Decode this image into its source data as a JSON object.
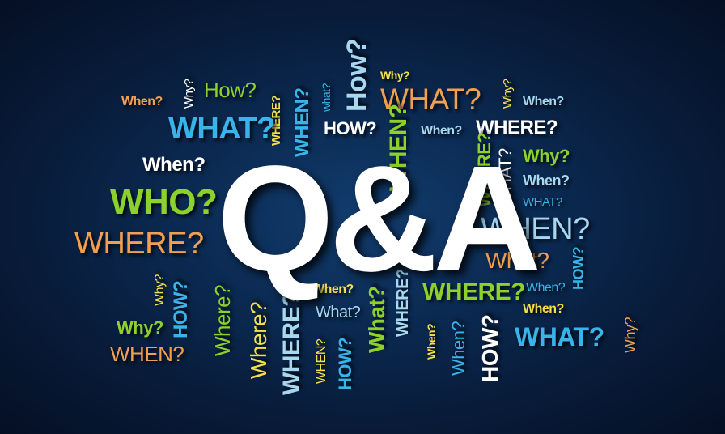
{
  "headline": "Q&A",
  "colors": {
    "background": "#0b2a52",
    "white": "#ffffff",
    "orange": "#f0a050",
    "green": "#8cd12c",
    "yellow": "#f5e04a",
    "light_blue": "#a8d8f0",
    "sky_blue": "#38b4e8"
  },
  "words": [
    {
      "text": "When?"
    },
    {
      "text": "Why?"
    },
    {
      "text": "How?"
    },
    {
      "text": "WHERE?"
    },
    {
      "text": "WHEN?"
    },
    {
      "text": "what?"
    },
    {
      "text": "How?"
    },
    {
      "text": "Why?"
    },
    {
      "text": "WHAT?"
    },
    {
      "text": "Why?"
    },
    {
      "text": "When?"
    },
    {
      "text": "WHAT?"
    },
    {
      "text": "HOW?"
    },
    {
      "text": "WHEN?"
    },
    {
      "text": "When?"
    },
    {
      "text": "WHERE?"
    },
    {
      "text": "WHERE?"
    },
    {
      "text": "WHAT?"
    },
    {
      "text": "Why?"
    },
    {
      "text": "When?"
    },
    {
      "text": "When?"
    },
    {
      "text": "WHAT?"
    },
    {
      "text": "WHO?"
    },
    {
      "text": "WHERE?"
    },
    {
      "text": "WHEN?"
    },
    {
      "text": "What?"
    },
    {
      "text": "HOW?"
    },
    {
      "text": "When?"
    },
    {
      "text": "Why?"
    },
    {
      "text": "HOW?"
    },
    {
      "text": "Where?"
    },
    {
      "text": "Where?"
    },
    {
      "text": "WHERE?"
    },
    {
      "text": "When?"
    },
    {
      "text": "What?"
    },
    {
      "text": "WHEN?"
    },
    {
      "text": "HOW?"
    },
    {
      "text": "What?"
    },
    {
      "text": "WHERE?"
    },
    {
      "text": "WHERE?"
    },
    {
      "text": "When?"
    },
    {
      "text": "When?"
    },
    {
      "text": "When?"
    },
    {
      "text": "HOW?"
    },
    {
      "text": "Why?"
    },
    {
      "text": "WHEN?"
    },
    {
      "text": "WHAT?"
    },
    {
      "text": "Why?"
    }
  ]
}
